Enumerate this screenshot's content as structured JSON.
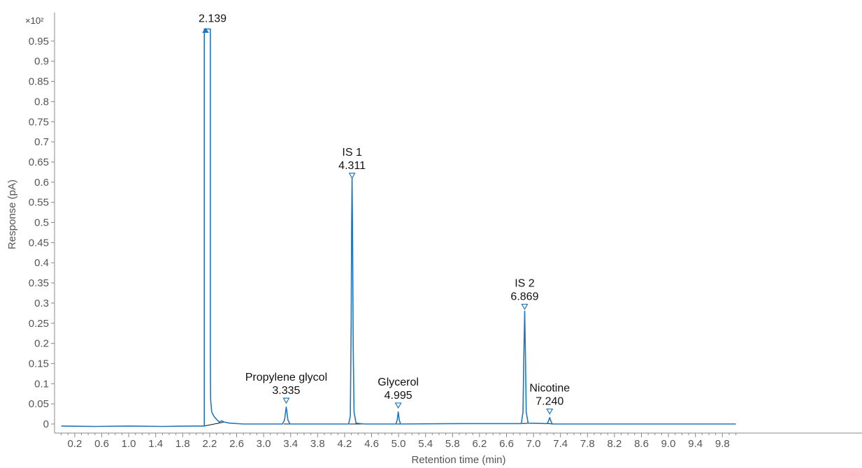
{
  "chart_data": {
    "type": "line",
    "y_multiplier": "×10²",
    "xlabel": "Retention time (min)",
    "ylabel": "Response (pA)",
    "xlim": [
      0.0,
      10.0
    ],
    "ylim": [
      -0.02,
      1.0
    ],
    "x_ticks": [
      "0.2",
      "0.6",
      "1.0",
      "1.4",
      "1.8",
      "2.2",
      "2.6",
      "3.0",
      "3.4",
      "3.8",
      "4.2",
      "4.6",
      "5.0",
      "5.4",
      "5.8",
      "6.2",
      "6.6",
      "7.0",
      "7.4",
      "7.8",
      "8.2",
      "8.6",
      "9.0",
      "9.4",
      "9.8"
    ],
    "y_ticks": [
      "0",
      "0.05",
      "0.1",
      "0.15",
      "0.2",
      "0.25",
      "0.3",
      "0.35",
      "0.4",
      "0.45",
      "0.5",
      "0.55",
      "0.6",
      "0.65",
      "0.7",
      "0.75",
      "0.8",
      "0.85",
      "0.9",
      "0.95"
    ],
    "grid": false,
    "colors": {
      "trace": "#2277bb",
      "baseline": "#111111",
      "axis": "#888888"
    },
    "series": [
      {
        "points": [
          [
            0.0,
            -0.005
          ],
          [
            0.5,
            -0.006
          ],
          [
            1.0,
            -0.005
          ],
          [
            1.5,
            -0.006
          ],
          [
            2.0,
            -0.005
          ],
          [
            2.12,
            -0.005
          ],
          [
            2.12,
            0.98
          ],
          [
            2.21,
            0.98
          ],
          [
            2.21,
            0.16
          ],
          [
            2.215,
            0.06
          ],
          [
            2.23,
            0.03
          ],
          [
            2.26,
            0.02
          ],
          [
            2.3,
            0.012
          ],
          [
            2.34,
            0.005
          ],
          [
            2.38,
            0.008
          ],
          [
            2.41,
            0.005
          ],
          [
            2.5,
            0.002
          ],
          [
            2.7,
            0.0
          ],
          [
            3.0,
            0.0
          ],
          [
            3.28,
            0.0
          ],
          [
            3.31,
            0.01
          ],
          [
            3.325,
            0.03
          ],
          [
            3.335,
            0.042
          ],
          [
            3.345,
            0.03
          ],
          [
            3.36,
            0.01
          ],
          [
            3.39,
            0.0
          ],
          [
            4.0,
            0.0
          ],
          [
            4.26,
            0.0
          ],
          [
            4.285,
            0.02
          ],
          [
            4.297,
            0.25
          ],
          [
            4.305,
            0.5
          ],
          [
            4.311,
            0.61
          ],
          [
            4.317,
            0.5
          ],
          [
            4.327,
            0.2
          ],
          [
            4.34,
            0.03
          ],
          [
            4.37,
            0.002
          ],
          [
            4.5,
            0.0
          ],
          [
            4.96,
            0.0
          ],
          [
            4.98,
            0.01
          ],
          [
            4.995,
            0.03
          ],
          [
            5.01,
            0.01
          ],
          [
            5.03,
            0.0
          ],
          [
            6.0,
            0.001
          ],
          [
            6.82,
            0.001
          ],
          [
            6.845,
            0.03
          ],
          [
            6.858,
            0.18
          ],
          [
            6.869,
            0.28
          ],
          [
            6.88,
            0.18
          ],
          [
            6.892,
            0.03
          ],
          [
            6.92,
            0.002
          ],
          [
            7.2,
            0.001
          ],
          [
            7.22,
            0.006
          ],
          [
            7.24,
            0.016
          ],
          [
            7.26,
            0.006
          ],
          [
            7.28,
            0.0
          ],
          [
            8.0,
            0.0
          ],
          [
            9.0,
            0.0
          ],
          [
            10.0,
            0.0
          ]
        ]
      }
    ],
    "baselines": [
      [
        [
          2.12,
          -0.005
        ],
        [
          2.42,
          0.005
        ]
      ],
      [
        [
          3.3,
          0.0
        ],
        [
          3.38,
          0.0
        ]
      ],
      [
        [
          4.27,
          0.0
        ],
        [
          4.5,
          0.0
        ]
      ],
      [
        [
          4.97,
          0.0
        ],
        [
          5.03,
          0.0
        ]
      ],
      [
        [
          6.83,
          0.001
        ],
        [
          6.92,
          0.002
        ]
      ],
      [
        [
          7.21,
          0.001
        ],
        [
          7.28,
          0.0
        ]
      ]
    ],
    "peaks": [
      {
        "rt": 2.139,
        "marker_y": 0.98,
        "marker": "apex",
        "name": "",
        "rt_label": "2.139"
      },
      {
        "rt": 3.335,
        "marker_y": 0.052,
        "marker": "triangle",
        "name": "Propylene glycol",
        "rt_label": "3.335"
      },
      {
        "rt": 4.311,
        "marker_y": 0.61,
        "marker": "triangle",
        "name": "IS 1",
        "rt_label": "4.311"
      },
      {
        "rt": 4.995,
        "marker_y": 0.04,
        "marker": "triangle",
        "name": "Glycerol",
        "rt_label": "4.995"
      },
      {
        "rt": 6.869,
        "marker_y": 0.285,
        "marker": "triangle",
        "name": "IS 2",
        "rt_label": "6.869"
      },
      {
        "rt": 7.24,
        "marker_y": 0.025,
        "marker": "triangle",
        "name": "Nicotine",
        "rt_label": "7.240"
      }
    ]
  }
}
